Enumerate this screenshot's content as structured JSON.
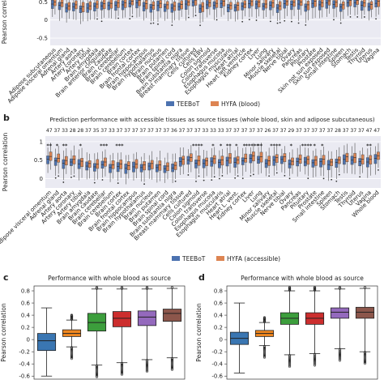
{
  "figure": {
    "panel_labels": {
      "b": "b",
      "c": "c",
      "d": "d"
    },
    "colors": {
      "teebot": "#4c72b0",
      "hyfa": "#dd8452",
      "bg": "#eaeaf2",
      "box_c": [
        "#3a76b2",
        "#f0871f",
        "#3c9e3c",
        "#cc2e2e",
        "#9469bd",
        "#8c564b"
      ]
    }
  },
  "chart_data": [
    {
      "id": "panel-a",
      "type": "box",
      "title": "",
      "xlabel": "",
      "ylabel": "Pearson correlation",
      "yticks": [
        0.5,
        0,
        -0.5
      ],
      "ylim": [
        -0.7,
        1.0
      ],
      "legend": [
        {
          "name": "TEEBoT",
          "color": "#4c72b0"
        },
        {
          "name": "HYFA (blood)",
          "color": "#dd8452"
        }
      ],
      "legend_position": "bottom-center",
      "categories": [
        "Adipose subcutaneous",
        "Adipose visceral omentum",
        "Adrenal gland",
        "Artery aorta",
        "Artery coronary",
        "Artery tibial",
        "Brain amygdala",
        "Brain anterior cingulate",
        "Brain caudate",
        "Brain cerebellar",
        "Brain cerebellum",
        "Brain cortex",
        "Brain frontal cortex",
        "Brain hippocampus",
        "Brain hypothalamus",
        "Brain nucleus",
        "Brain putamen",
        "Brain spinal cord",
        "Brain substantia nigra",
        "Breast mammary tissue",
        "Cells cultured",
        "Cells EBV",
        "Colon sigmoid",
        "Colon transverse",
        "Esophagus mucosa",
        "Esophagus muscularis",
        "Heart atrial",
        "Heart left ventricle",
        "Kidney cortex",
        "Liver",
        "Lung",
        "Minor salivary",
        "Muscle skeletal",
        "Nerve tibial",
        "Ovary",
        "Pancreas",
        "Pituitary",
        "Prostate",
        "Skin not sun exposed",
        "Skin sun exposed",
        "Small intestine",
        "Spleen",
        "Stomach",
        "Testis",
        "Thyroid",
        "Uterus",
        "Vagina"
      ],
      "series": [
        {
          "name": "TEEBoT",
          "medians": [
            0.44,
            0.41,
            0.33,
            0.36,
            0.31,
            0.33,
            0.38,
            0.39,
            0.4,
            0.41,
            0.42,
            0.46,
            0.48,
            0.39,
            0.35,
            0.4,
            0.36,
            0.33,
            0.37,
            0.44,
            0.49,
            0.31,
            0.42,
            0.4,
            0.46,
            0.34,
            0.35,
            0.38,
            0.45,
            0.44,
            0.38,
            0.41,
            0.33,
            0.45,
            0.43,
            0.44,
            0.36,
            0.46,
            0.42,
            0.47,
            0.43,
            0.36,
            0.48,
            0.48,
            0.41,
            0.37,
            0.46
          ]
        },
        {
          "name": "HYFA (blood)",
          "medians": [
            0.5,
            0.47,
            0.39,
            0.42,
            0.37,
            0.39,
            0.44,
            0.45,
            0.46,
            0.47,
            0.48,
            0.52,
            0.54,
            0.45,
            0.41,
            0.46,
            0.42,
            0.39,
            0.43,
            0.5,
            0.55,
            0.37,
            0.48,
            0.46,
            0.52,
            0.4,
            0.41,
            0.44,
            0.51,
            0.5,
            0.44,
            0.47,
            0.39,
            0.51,
            0.49,
            0.5,
            0.42,
            0.52,
            0.48,
            0.53,
            0.49,
            0.42,
            0.54,
            0.54,
            0.47,
            0.43,
            0.52
          ]
        }
      ]
    },
    {
      "id": "panel-b",
      "type": "box",
      "title": "Prediction performance with accessible tissues as source tissues (whole blood, skin and adipose subcutaneous)",
      "xlabel": "",
      "ylabel": "Pearson correlation",
      "yticks": [
        1.0,
        0.5,
        0
      ],
      "ylim": [
        -0.25,
        1.15
      ],
      "top_numbers": [
        "47",
        "37",
        "33",
        "28",
        "28",
        "37",
        "35",
        "37",
        "33",
        "37",
        "37",
        "37",
        "37",
        "37",
        "37",
        "37",
        "36",
        "37",
        "37",
        "37",
        "33",
        "33",
        "33",
        "37",
        "37",
        "37",
        "37",
        "37",
        "26",
        "37",
        "37",
        "29",
        "37",
        "37",
        "37",
        "37",
        "37",
        "28",
        "37",
        "37",
        "37",
        "47",
        "47"
      ],
      "significance": [
        "**",
        "*",
        "**",
        "",
        "*",
        "",
        "",
        "***",
        "",
        "***",
        "",
        "",
        "",
        "",
        "",
        "",
        "",
        "",
        "",
        "****",
        "",
        "*",
        "*",
        "**",
        "*",
        "*",
        "*****",
        "**",
        "",
        "****",
        "",
        "*",
        "",
        "****",
        "*",
        "*",
        "",
        "",
        "",
        "",
        "",
        "**",
        ""
      ],
      "legend": [
        {
          "name": "TEEBoT",
          "color": "#4c72b0"
        },
        {
          "name": "HYFA (accessible)",
          "color": "#dd8452"
        }
      ],
      "legend_position": "bottom-center",
      "categories": [
        "Adipose visceral omentum",
        "Adrenal gland",
        "Artery aorta",
        "Artery coronary",
        "Artery tibial",
        "Brain amygdala",
        "Brain caudate",
        "Brain cerebellar",
        "Brain cerebellum",
        "Brain cortex",
        "Brain frontal cortex",
        "Brain hippocampus",
        "Brain hypothalamus",
        "Brain nucleus",
        "Brain putamen",
        "Brain spinal cord",
        "Brain substantia nigra",
        "Breast mammary tissue",
        "Cells cultured",
        "Colon sigmoid",
        "Colon transverse",
        "Esophagus mucosa",
        "Esophagus muscularis",
        "Heart atrial",
        "Heart L. vent.",
        "Kidney cortex",
        "Liver",
        "Lung",
        "Minor salivary",
        "Muscle skeletal",
        "Nerve tibial",
        "Ovary",
        "Pancreas",
        "Pituitary",
        "Prostate",
        "Small intestine",
        "Spleen",
        "Stomach",
        "Testis",
        "Thyroid",
        "Uterus",
        "Vagina",
        "Whole blood"
      ],
      "series": [
        {
          "name": "TEEBoT",
          "medians": [
            0.53,
            0.48,
            0.42,
            0.45,
            0.4,
            0.34,
            0.32,
            0.38,
            0.3,
            0.33,
            0.28,
            0.32,
            0.3,
            0.34,
            0.3,
            0.27,
            0.29,
            0.46,
            0.5,
            0.42,
            0.41,
            0.47,
            0.44,
            0.49,
            0.44,
            0.48,
            0.55,
            0.52,
            0.41,
            0.5,
            0.52,
            0.4,
            0.46,
            0.45,
            0.43,
            0.46,
            0.38,
            0.44,
            0.52,
            0.5,
            0.46,
            0.45,
            0.55
          ]
        },
        {
          "name": "HYFA (accessible)",
          "medians": [
            0.6,
            0.55,
            0.49,
            0.52,
            0.47,
            0.41,
            0.39,
            0.45,
            0.37,
            0.4,
            0.35,
            0.39,
            0.37,
            0.41,
            0.37,
            0.34,
            0.36,
            0.53,
            0.57,
            0.49,
            0.48,
            0.54,
            0.51,
            0.56,
            0.51,
            0.55,
            0.62,
            0.59,
            0.48,
            0.57,
            0.59,
            0.47,
            0.53,
            0.52,
            0.5,
            0.53,
            0.45,
            0.51,
            0.59,
            0.57,
            0.53,
            0.52,
            0.62
          ]
        }
      ]
    },
    {
      "id": "panel-c",
      "type": "box",
      "title": "Performance with whole blood as source",
      "xlabel": "",
      "ylabel": "Pearson correlation",
      "yticks": [
        0.8,
        0.6,
        0.4,
        0.2,
        0,
        -0.2,
        -0.4,
        -0.6
      ],
      "ylim": [
        -0.65,
        0.88
      ],
      "boxes": [
        {
          "color": "#3a76b2",
          "min": -0.6,
          "q1": -0.18,
          "median": -0.02,
          "q3": 0.1,
          "max": 0.52
        },
        {
          "color": "#f0871f",
          "min": -0.12,
          "q1": 0.05,
          "median": 0.1,
          "q3": 0.16,
          "max": 0.32
        },
        {
          "color": "#3c9e3c",
          "min": -0.42,
          "q1": 0.14,
          "median": 0.28,
          "q3": 0.43,
          "max": 0.83
        },
        {
          "color": "#cc2e2e",
          "min": -0.38,
          "q1": 0.21,
          "median": 0.35,
          "q3": 0.46,
          "max": 0.83
        },
        {
          "color": "#9469bd",
          "min": -0.33,
          "q1": 0.23,
          "median": 0.37,
          "q3": 0.47,
          "max": 0.83
        },
        {
          "color": "#8c564b",
          "min": -0.3,
          "q1": 0.3,
          "median": 0.43,
          "q3": 0.5,
          "max": 0.84
        }
      ]
    },
    {
      "id": "panel-d",
      "type": "box",
      "title": "Performance with whole blood as source",
      "xlabel": "",
      "ylabel": "Pearson correlation",
      "yticks": [
        0.8,
        0.6,
        0.4,
        0.2,
        0,
        -0.2,
        -0.4,
        -0.6
      ],
      "ylim": [
        -0.65,
        0.88
      ],
      "boxes": [
        {
          "color": "#3a76b2",
          "min": -0.55,
          "q1": -0.08,
          "median": 0.02,
          "q3": 0.12,
          "max": 0.6
        },
        {
          "color": "#f0871f",
          "min": -0.1,
          "q1": 0.05,
          "median": 0.1,
          "q3": 0.15,
          "max": 0.28
        },
        {
          "color": "#3c9e3c",
          "min": -0.25,
          "q1": 0.25,
          "median": 0.35,
          "q3": 0.44,
          "max": 0.8
        },
        {
          "color": "#cc2e2e",
          "min": -0.23,
          "q1": 0.25,
          "median": 0.35,
          "q3": 0.44,
          "max": 0.8
        },
        {
          "color": "#9469bd",
          "min": -0.15,
          "q1": 0.35,
          "median": 0.45,
          "q3": 0.52,
          "max": 0.83
        },
        {
          "color": "#8c564b",
          "min": -0.2,
          "q1": 0.35,
          "median": 0.45,
          "q3": 0.53,
          "max": 0.84
        }
      ]
    }
  ]
}
